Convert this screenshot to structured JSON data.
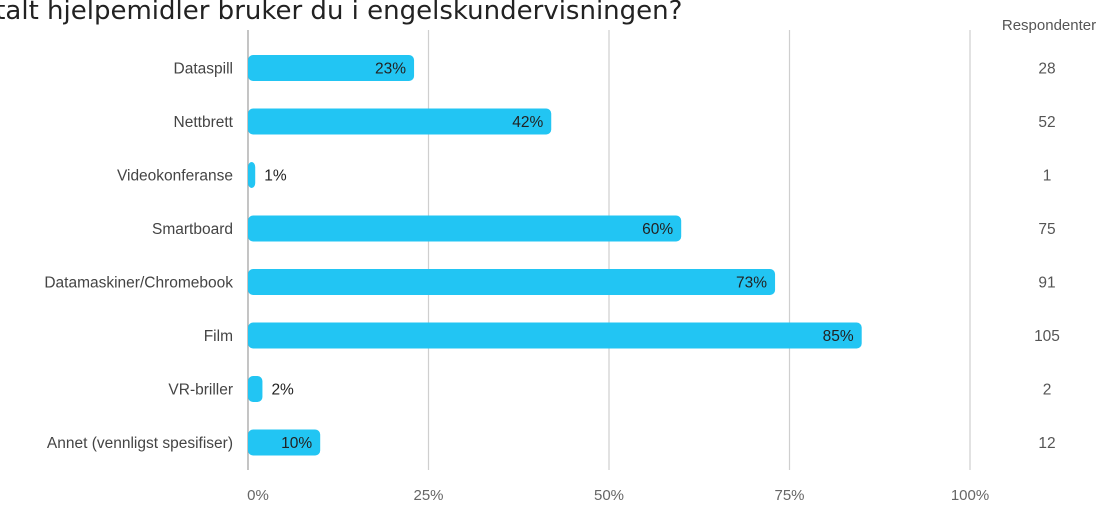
{
  "chart_data": {
    "type": "bar",
    "orientation": "horizontal",
    "title": "italt hjelpemidler bruker du i engelskundervisningen?",
    "categories": [
      "Dataspill",
      "Nettbrett",
      "Videokonferanse",
      "Smartboard",
      "Datamaskiner/Chromebook",
      "Film",
      "VR-briller",
      "Annet (vennligst spesifiser)"
    ],
    "values": [
      23,
      42,
      1,
      60,
      73,
      85,
      2,
      10
    ],
    "value_labels": [
      "23%",
      "42%",
      "1%",
      "60%",
      "73%",
      "85%",
      "2%",
      "10%"
    ],
    "xlim": [
      0,
      100
    ],
    "x_ticks": [
      0,
      25,
      50,
      75,
      100
    ],
    "x_tick_labels": [
      "0%",
      "25%",
      "50%",
      "75%",
      "100%"
    ],
    "grid": true,
    "bar_color": "#22c5f3",
    "respondents_header": "Respondenter",
    "respondents": [
      "28",
      "52",
      "1",
      "75",
      "91",
      "105",
      "2",
      "12"
    ]
  }
}
